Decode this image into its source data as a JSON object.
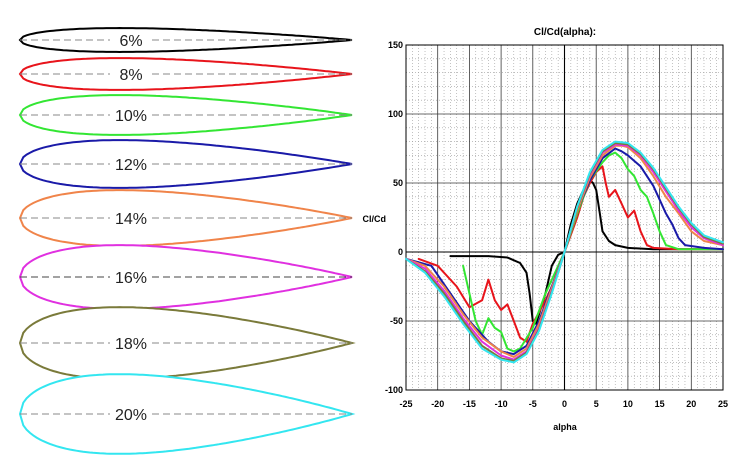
{
  "airfoils": [
    {
      "label": "6%",
      "thickness": 0.06,
      "color": "#000000"
    },
    {
      "label": "8%",
      "thickness": 0.08,
      "color": "#e8141b"
    },
    {
      "label": "10%",
      "thickness": 0.1,
      "color": "#33e633"
    },
    {
      "label": "12%",
      "thickness": 0.12,
      "color": "#1a1aa8"
    },
    {
      "label": "14%",
      "thickness": 0.14,
      "color": "#f0844a"
    },
    {
      "label": "16%",
      "thickness": 0.16,
      "color": "#e030e0"
    },
    {
      "label": "18%",
      "thickness": 0.18,
      "color": "#7a7a3a"
    },
    {
      "label": "20%",
      "thickness": 0.2,
      "color": "#33e6f0"
    }
  ],
  "chart_data": {
    "type": "line",
    "title": "Cl/Cd(alpha):",
    "xlabel": "alpha",
    "ylabel": "Cl/Cd",
    "xlim": [
      -25,
      25
    ],
    "ylim": [
      -100,
      150
    ],
    "x_ticks": [
      -25,
      -20,
      -15,
      -10,
      -5,
      0,
      5,
      10,
      15,
      20,
      25
    ],
    "y_ticks": [
      -100,
      -50,
      0,
      50,
      100,
      150
    ],
    "grid": true,
    "series": [
      {
        "color": "#000000",
        "points": [
          [
            -18,
            -3
          ],
          [
            -12,
            -3
          ],
          [
            -9,
            -4
          ],
          [
            -7,
            -8
          ],
          [
            -6,
            -15
          ],
          [
            -5.5,
            -30
          ],
          [
            -5,
            -50
          ],
          [
            -4.5,
            -52
          ],
          [
            -4,
            -45
          ],
          [
            -3,
            -30
          ],
          [
            -2,
            -10
          ],
          [
            -1,
            -2
          ],
          [
            0,
            0
          ],
          [
            1,
            20
          ],
          [
            2,
            35
          ],
          [
            3,
            45
          ],
          [
            4,
            52
          ],
          [
            4.5,
            50
          ],
          [
            5,
            45
          ],
          [
            5.5,
            30
          ],
          [
            6,
            15
          ],
          [
            7,
            8
          ],
          [
            8,
            5
          ],
          [
            10,
            3
          ],
          [
            14,
            2
          ],
          [
            18,
            2
          ],
          [
            25,
            2
          ]
        ]
      },
      {
        "color": "#e8141b",
        "points": [
          [
            -23,
            -5
          ],
          [
            -20,
            -10
          ],
          [
            -17,
            -25
          ],
          [
            -15,
            -40
          ],
          [
            -13,
            -35
          ],
          [
            -12,
            -20
          ],
          [
            -11,
            -35
          ],
          [
            -10,
            -42
          ],
          [
            -9,
            -38
          ],
          [
            -8,
            -50
          ],
          [
            -7,
            -62
          ],
          [
            -6,
            -65
          ],
          [
            -5,
            -52
          ],
          [
            -3,
            -35
          ],
          [
            -1,
            -15
          ],
          [
            0,
            0
          ],
          [
            2,
            25
          ],
          [
            3,
            40
          ],
          [
            4,
            50
          ],
          [
            5,
            58
          ],
          [
            6,
            62
          ],
          [
            6.5,
            50
          ],
          [
            7,
            40
          ],
          [
            8,
            45
          ],
          [
            9,
            35
          ],
          [
            10,
            25
          ],
          [
            11,
            30
          ],
          [
            12,
            15
          ],
          [
            13,
            5
          ],
          [
            14,
            3
          ],
          [
            18,
            2
          ],
          [
            25,
            2
          ]
        ]
      },
      {
        "color": "#33e633",
        "points": [
          [
            -16,
            -10
          ],
          [
            -15,
            -30
          ],
          [
            -14,
            -50
          ],
          [
            -13,
            -60
          ],
          [
            -12,
            -48
          ],
          [
            -11,
            -55
          ],
          [
            -10,
            -58
          ],
          [
            -9,
            -70
          ],
          [
            -8,
            -72
          ],
          [
            -7,
            -70
          ],
          [
            -5,
            -55
          ],
          [
            -3,
            -30
          ],
          [
            -1,
            -10
          ],
          [
            0,
            0
          ],
          [
            2,
            28
          ],
          [
            4,
            52
          ],
          [
            6,
            65
          ],
          [
            7,
            70
          ],
          [
            8,
            72
          ],
          [
            9,
            68
          ],
          [
            10,
            60
          ],
          [
            11,
            55
          ],
          [
            12,
            45
          ],
          [
            13,
            40
          ],
          [
            14,
            28
          ],
          [
            15,
            15
          ],
          [
            16,
            5
          ],
          [
            18,
            2
          ],
          [
            25,
            2
          ]
        ]
      },
      {
        "color": "#1a1aa8",
        "points": [
          [
            -25,
            -5
          ],
          [
            -21,
            -10
          ],
          [
            -18,
            -30
          ],
          [
            -15,
            -50
          ],
          [
            -12,
            -65
          ],
          [
            -10,
            -72
          ],
          [
            -8,
            -74
          ],
          [
            -6,
            -68
          ],
          [
            -4,
            -50
          ],
          [
            -2,
            -25
          ],
          [
            0,
            0
          ],
          [
            2,
            30
          ],
          [
            4,
            52
          ],
          [
            6,
            68
          ],
          [
            8,
            75
          ],
          [
            9,
            73
          ],
          [
            10,
            70
          ],
          [
            12,
            62
          ],
          [
            14,
            48
          ],
          [
            15,
            38
          ],
          [
            16,
            28
          ],
          [
            17,
            20
          ],
          [
            18,
            10
          ],
          [
            19,
            5
          ],
          [
            22,
            3
          ],
          [
            25,
            2
          ]
        ]
      },
      {
        "color": "#f0844a",
        "points": [
          [
            -25,
            -5
          ],
          [
            -22,
            -10
          ],
          [
            -19,
            -25
          ],
          [
            -16,
            -45
          ],
          [
            -13,
            -62
          ],
          [
            -10,
            -72
          ],
          [
            -8,
            -76
          ],
          [
            -6,
            -70
          ],
          [
            -4,
            -52
          ],
          [
            -2,
            -26
          ],
          [
            0,
            0
          ],
          [
            2,
            30
          ],
          [
            4,
            54
          ],
          [
            6,
            70
          ],
          [
            8,
            77
          ],
          [
            9,
            77
          ],
          [
            10,
            76
          ],
          [
            12,
            68
          ],
          [
            14,
            55
          ],
          [
            16,
            40
          ],
          [
            18,
            28
          ],
          [
            20,
            15
          ],
          [
            22,
            8
          ],
          [
            25,
            5
          ]
        ]
      },
      {
        "color": "#e030e0",
        "points": [
          [
            -25,
            -5
          ],
          [
            -22,
            -12
          ],
          [
            -19,
            -28
          ],
          [
            -16,
            -48
          ],
          [
            -13,
            -65
          ],
          [
            -10,
            -75
          ],
          [
            -8,
            -78
          ],
          [
            -6,
            -72
          ],
          [
            -4,
            -55
          ],
          [
            -2,
            -28
          ],
          [
            0,
            0
          ],
          [
            2,
            32
          ],
          [
            4,
            56
          ],
          [
            6,
            72
          ],
          [
            8,
            78
          ],
          [
            10,
            77
          ],
          [
            12,
            70
          ],
          [
            14,
            58
          ],
          [
            16,
            44
          ],
          [
            18,
            30
          ],
          [
            20,
            18
          ],
          [
            22,
            10
          ],
          [
            25,
            5
          ]
        ]
      },
      {
        "color": "#7a7a3a",
        "points": [
          [
            -25,
            -5
          ],
          [
            -22,
            -14
          ],
          [
            -19,
            -30
          ],
          [
            -16,
            -50
          ],
          [
            -13,
            -68
          ],
          [
            -10,
            -77
          ],
          [
            -8,
            -79
          ],
          [
            -6,
            -73
          ],
          [
            -4,
            -56
          ],
          [
            -2,
            -29
          ],
          [
            0,
            0
          ],
          [
            2,
            32
          ],
          [
            4,
            57
          ],
          [
            6,
            73
          ],
          [
            8,
            79
          ],
          [
            10,
            78
          ],
          [
            12,
            71
          ],
          [
            14,
            60
          ],
          [
            16,
            46
          ],
          [
            18,
            32
          ],
          [
            20,
            20
          ],
          [
            22,
            11
          ],
          [
            25,
            6
          ]
        ]
      },
      {
        "color": "#33e6f0",
        "points": [
          [
            -25,
            -5
          ],
          [
            -22,
            -15
          ],
          [
            -19,
            -32
          ],
          [
            -16,
            -52
          ],
          [
            -13,
            -70
          ],
          [
            -10,
            -78
          ],
          [
            -8,
            -80
          ],
          [
            -6,
            -74
          ],
          [
            -4,
            -57
          ],
          [
            -2,
            -30
          ],
          [
            0,
            0
          ],
          [
            2,
            33
          ],
          [
            4,
            58
          ],
          [
            6,
            74
          ],
          [
            8,
            80
          ],
          [
            10,
            79
          ],
          [
            12,
            72
          ],
          [
            14,
            61
          ],
          [
            16,
            47
          ],
          [
            18,
            33
          ],
          [
            20,
            21
          ],
          [
            22,
            12
          ],
          [
            25,
            7
          ]
        ]
      }
    ]
  }
}
